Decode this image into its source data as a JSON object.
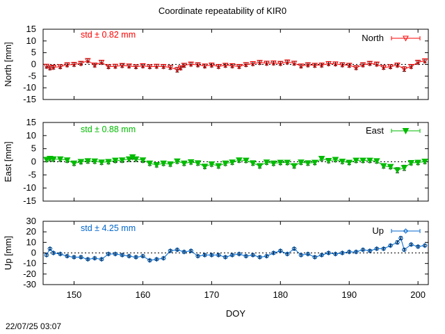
{
  "title": "Coordinate repeatability of KIR0",
  "timestamp": "22/07/25 03:07",
  "chart_data": [
    {
      "type": "scatter",
      "ylabel": "North [mm]",
      "ylim": [
        -15,
        15
      ],
      "yticks": [
        15,
        10,
        5,
        0,
        -5,
        -10,
        -15
      ],
      "xlim": [
        145.5,
        201.5
      ],
      "std_label": "std ± 0.82 mm",
      "series": [
        {
          "name": "North",
          "color": "#ff0000",
          "marker": "triangle-open",
          "x": [
            146,
            146.5,
            147,
            148,
            149,
            150,
            151,
            152,
            153,
            154,
            155,
            156,
            157,
            158,
            159,
            160,
            161,
            162,
            163,
            164,
            165,
            165.5,
            166,
            167,
            168,
            169,
            170,
            171,
            172,
            173,
            174,
            175,
            176,
            177,
            178,
            179,
            180,
            181,
            182,
            183,
            184,
            185,
            186,
            187,
            188,
            189,
            190,
            191,
            192,
            193,
            194,
            195,
            196,
            197,
            198,
            199,
            200,
            201
          ],
          "y": [
            -0.8,
            -1.5,
            -1.2,
            -1.0,
            -0.2,
            0.0,
            0.4,
            1.6,
            -0.3,
            0.9,
            -1.0,
            -0.8,
            -0.5,
            -0.7,
            -1.0,
            -0.6,
            -1.0,
            -0.8,
            -0.9,
            -1.3,
            -2.3,
            -1.5,
            -0.4,
            0.1,
            -0.2,
            -0.7,
            -0.3,
            -0.9,
            -0.4,
            -0.6,
            -0.9,
            -0.1,
            0.3,
            0.8,
            0.5,
            0.6,
            0.4,
            1.0,
            0.5,
            -0.7,
            -0.2,
            -0.4,
            -0.3,
            0.3,
            0.2,
            -0.2,
            -0.4,
            -1.4,
            -0.2,
            0.4,
            0.1,
            -1.3,
            -1.0,
            -0.3,
            -2.0,
            -0.9,
            0.9,
            1.5
          ],
          "err": [
            0.8,
            0.8,
            0.8,
            0.8,
            0.8,
            0.8,
            0.8,
            0.8,
            0.8,
            0.8,
            0.8,
            0.8,
            0.8,
            0.8,
            0.8,
            0.8,
            0.8,
            0.8,
            0.8,
            0.8,
            1.0,
            0.8,
            0.8,
            0.8,
            0.8,
            0.8,
            0.8,
            0.8,
            0.8,
            0.8,
            0.8,
            0.8,
            0.8,
            0.8,
            0.8,
            0.8,
            0.8,
            0.8,
            0.8,
            0.8,
            0.8,
            0.8,
            0.8,
            0.8,
            0.8,
            0.8,
            0.8,
            0.8,
            0.8,
            0.8,
            0.8,
            0.8,
            0.8,
            0.8,
            1.0,
            0.8,
            0.8,
            0.8
          ]
        }
      ]
    },
    {
      "type": "scatter",
      "ylabel": "East [mm]",
      "ylim": [
        -15,
        15
      ],
      "yticks": [
        15,
        10,
        5,
        0,
        -5,
        -10,
        -15
      ],
      "xlim": [
        145.5,
        201.5
      ],
      "std_label": "std ± 0.88 mm",
      "series": [
        {
          "name": "East",
          "color": "#00bb00",
          "marker": "triangle-filled",
          "x": [
            146,
            146.5,
            147,
            148,
            149,
            150,
            151,
            152,
            153,
            154,
            155,
            156,
            157,
            158,
            158.5,
            159,
            160,
            161,
            162,
            163,
            164,
            165,
            166,
            167,
            168,
            169,
            170,
            171,
            172,
            173,
            174,
            175,
            176,
            177,
            178,
            179,
            180,
            181,
            182,
            183,
            184,
            185,
            186,
            187,
            188,
            189,
            190,
            191,
            192,
            193,
            194,
            195,
            196,
            197,
            198,
            199,
            200,
            201
          ],
          "y": [
            0.8,
            1.2,
            1.0,
            1.0,
            0.6,
            -0.6,
            0.0,
            0.3,
            0.2,
            -0.2,
            0.0,
            0.5,
            0.6,
            1.0,
            1.8,
            1.0,
            0.6,
            -0.6,
            -1.2,
            -0.6,
            -0.9,
            0.2,
            -0.6,
            -0.1,
            -0.5,
            -1.8,
            -0.9,
            -1.6,
            -0.6,
            -0.2,
            0.6,
            0.5,
            -0.5,
            -1.6,
            -0.2,
            -0.6,
            -0.3,
            -0.3,
            -1.6,
            -0.2,
            -0.5,
            -0.3,
            1.2,
            0.4,
            0.8,
            0.1,
            -0.3,
            0.5,
            0.5,
            0.5,
            0.3,
            -1.6,
            -1.9,
            -3.2,
            -2.3,
            -0.4,
            -0.3,
            0.1
          ],
          "err": [
            0.8,
            0.8,
            0.8,
            0.8,
            0.8,
            0.8,
            0.8,
            0.8,
            0.8,
            0.8,
            0.8,
            0.8,
            0.8,
            0.8,
            0.8,
            0.8,
            0.8,
            0.8,
            0.8,
            0.8,
            0.8,
            0.8,
            0.8,
            0.8,
            0.8,
            0.8,
            0.8,
            0.8,
            0.8,
            0.8,
            0.8,
            0.8,
            0.8,
            0.8,
            0.8,
            0.8,
            0.8,
            0.8,
            0.8,
            0.8,
            0.8,
            0.8,
            0.8,
            0.8,
            0.8,
            0.8,
            0.8,
            0.8,
            0.8,
            0.8,
            0.8,
            0.8,
            0.8,
            1.0,
            1.0,
            0.8,
            0.8,
            0.8
          ]
        }
      ]
    },
    {
      "type": "line",
      "ylabel": "Up [mm]",
      "ylim": [
        -30,
        30
      ],
      "yticks": [
        30,
        20,
        10,
        0,
        -10,
        -20,
        -30
      ],
      "xlim": [
        145.5,
        201.5
      ],
      "xlabel": "DOY",
      "xticks": [
        150,
        160,
        170,
        180,
        190,
        200
      ],
      "std_label": "std ± 4.25 mm",
      "series": [
        {
          "name": "Up",
          "color": "#0066cc",
          "marker": "diamond-open",
          "x": [
            146,
            146.5,
            147,
            148,
            149,
            150,
            151,
            152,
            153,
            154,
            155,
            156,
            157,
            158,
            159,
            160,
            161,
            162,
            163,
            164,
            165,
            166,
            167,
            168,
            169,
            170,
            171,
            172,
            173,
            174,
            175,
            176,
            177,
            178,
            179,
            180,
            181,
            182,
            183,
            184,
            185,
            186,
            187,
            188,
            189,
            190,
            191,
            192,
            193,
            194,
            195,
            196,
            197,
            197.5,
            198,
            199,
            200,
            201
          ],
          "y": [
            -2,
            4,
            0,
            -1,
            -3,
            -4,
            -4,
            -6,
            -5,
            -6,
            -1,
            -1,
            -2,
            -3,
            -4,
            -3,
            -7,
            -6,
            -5,
            2,
            3,
            1,
            2,
            -3,
            -2,
            -2,
            -2,
            -4,
            -2,
            -1,
            -3,
            -2,
            -4,
            -3,
            0,
            2,
            -1,
            4,
            -2,
            -1,
            -4,
            -2,
            0,
            -1,
            0,
            1,
            1,
            3,
            2,
            4,
            4,
            7,
            10,
            14,
            3,
            8,
            6,
            7
          ],
          "err": [
            1.2,
            1.2,
            1.2,
            1.2,
            1.2,
            1.2,
            1.2,
            1.2,
            1.2,
            1.2,
            1.2,
            1.2,
            1.2,
            1.2,
            1.2,
            1.2,
            1.2,
            1.2,
            1.2,
            1.2,
            1.2,
            1.2,
            1.2,
            1.2,
            1.2,
            1.2,
            1.2,
            1.2,
            1.2,
            1.2,
            1.2,
            1.2,
            1.2,
            1.2,
            1.2,
            1.2,
            1.2,
            1.2,
            1.2,
            1.2,
            1.2,
            1.2,
            1.2,
            1.2,
            1.2,
            1.2,
            1.2,
            1.2,
            1.2,
            1.2,
            1.2,
            1.2,
            1.5,
            1.5,
            1.2,
            1.2,
            1.2,
            1.2
          ]
        }
      ]
    }
  ]
}
